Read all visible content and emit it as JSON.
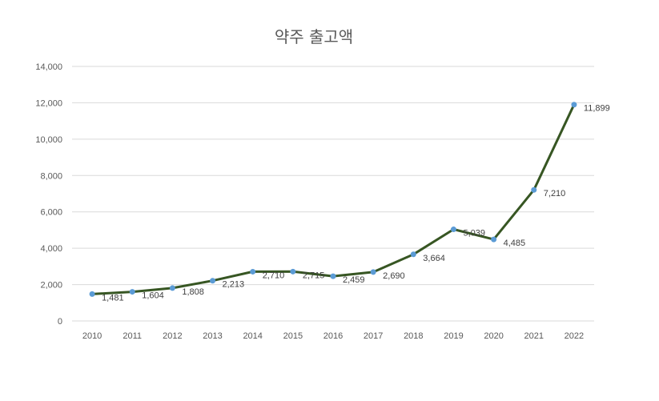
{
  "chart_data": {
    "type": "line",
    "title": "약주 출고액",
    "xlabel": "",
    "ylabel": "",
    "categories": [
      "2010",
      "2011",
      "2012",
      "2013",
      "2014",
      "2015",
      "2016",
      "2017",
      "2018",
      "2019",
      "2020",
      "2021",
      "2022"
    ],
    "values": [
      1481,
      1604,
      1808,
      2213,
      2710,
      2715,
      2459,
      2690,
      3664,
      5039,
      4485,
      7210,
      11899
    ],
    "data_labels": [
      "1,481",
      "1,604",
      "1,808",
      "2,213",
      "2,710",
      "2,715",
      "2,459",
      "2,690",
      "3,664",
      "5,039",
      "4,485",
      "7,210",
      "11,899"
    ],
    "yticks": [
      "0",
      "2,000",
      "4,000",
      "6,000",
      "8,000",
      "10,000",
      "12,000",
      "14,000"
    ],
    "ylim": [
      0,
      14000
    ],
    "grid": true,
    "legend": "none",
    "line_color": "#375623",
    "marker_color": "#5b9bd5"
  }
}
